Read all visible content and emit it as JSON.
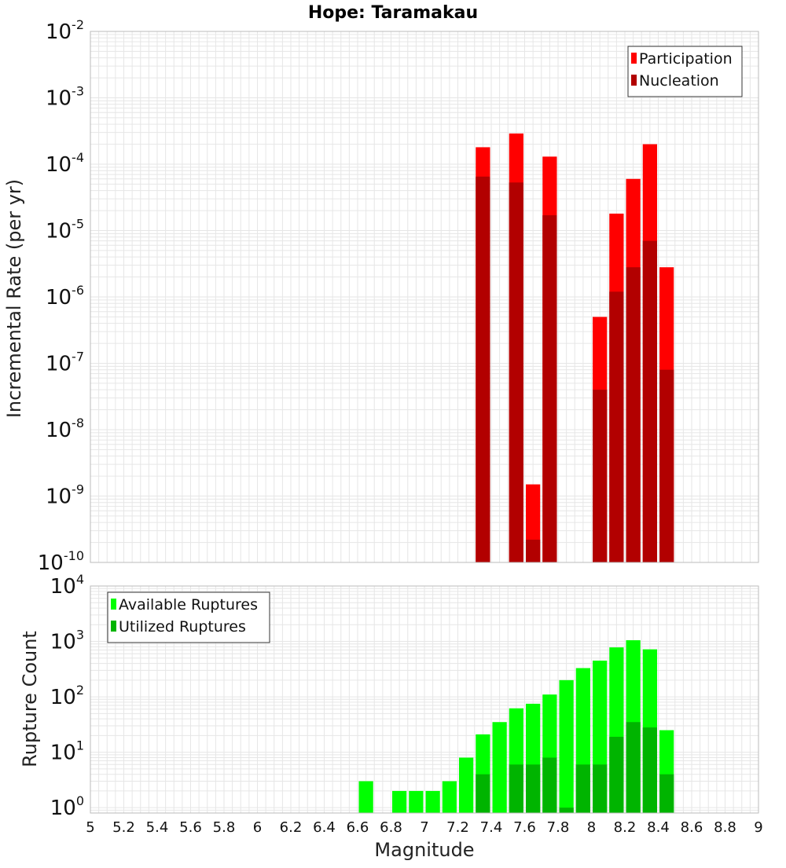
{
  "colors": {
    "participation": "#ff0000",
    "nucleation": "#b20000",
    "available": "#00ff00",
    "utilized": "#00b400",
    "grid": "#e6e6e6",
    "frame": "#bbbbbb"
  },
  "chart_data": [
    {
      "type": "bar",
      "title": "Hope: Taramakau",
      "ylabel": "Incremental Rate (per yr)",
      "xlabel": "",
      "yscale": "log",
      "ylim": [
        1e-10,
        0.01
      ],
      "xlim": [
        5,
        9
      ],
      "y_ticks": [
        {
          "base": "10",
          "exp": "-10",
          "value": 1e-10
        },
        {
          "base": "10",
          "exp": "-9",
          "value": 1e-09
        },
        {
          "base": "10",
          "exp": "-8",
          "value": 1e-08
        },
        {
          "base": "10",
          "exp": "-7",
          "value": 1e-07
        },
        {
          "base": "10",
          "exp": "-6",
          "value": 1e-06
        },
        {
          "base": "10",
          "exp": "-5",
          "value": 1e-05
        },
        {
          "base": "10",
          "exp": "-4",
          "value": 0.0001
        },
        {
          "base": "10",
          "exp": "-3",
          "value": 0.001
        },
        {
          "base": "10",
          "exp": "-2",
          "value": 0.01
        }
      ],
      "legend": {
        "position": "top-right",
        "entries": [
          "Participation",
          "Nucleation"
        ]
      },
      "series": [
        {
          "name": "Participation",
          "x": [
            7.35,
            7.55,
            7.65,
            7.75,
            8.05,
            8.15,
            8.25,
            8.35,
            8.45
          ],
          "values": [
            0.00018,
            0.00029,
            1.5e-09,
            0.00013,
            5e-07,
            1.8e-05,
            6e-05,
            0.0002,
            2.8e-06
          ]
        },
        {
          "name": "Nucleation",
          "x": [
            7.35,
            7.55,
            7.65,
            7.75,
            8.05,
            8.15,
            8.25,
            8.35,
            8.45
          ],
          "values": [
            6.5e-05,
            5.3e-05,
            2.2e-10,
            1.7e-05,
            4e-08,
            1.2e-06,
            2.8e-06,
            7e-06,
            8e-08
          ]
        }
      ]
    },
    {
      "type": "bar",
      "title": "",
      "ylabel": "Rupture Count",
      "xlabel": "Magnitude",
      "yscale": "log",
      "ylim": [
        0.8,
        10000
      ],
      "xlim": [
        5,
        9
      ],
      "y_ticks": [
        {
          "base": "10",
          "exp": "0",
          "value": 1
        },
        {
          "base": "10",
          "exp": "1",
          "value": 10
        },
        {
          "base": "10",
          "exp": "2",
          "value": 100
        },
        {
          "base": "10",
          "exp": "3",
          "value": 1000
        },
        {
          "base": "10",
          "exp": "4",
          "value": 10000
        }
      ],
      "x_tick_labels": [
        "5",
        "5.2",
        "5.4",
        "5.6",
        "5.8",
        "6",
        "6.2",
        "6.4",
        "6.6",
        "6.8",
        "7",
        "7.2",
        "7.4",
        "7.6",
        "7.8",
        "8",
        "8.2",
        "8.4",
        "8.6",
        "8.8",
        "9"
      ],
      "legend": {
        "position": "top-left",
        "entries": [
          "Available Ruptures",
          "Utilized Ruptures"
        ]
      },
      "series": [
        {
          "name": "Available Ruptures",
          "x": [
            6.65,
            6.85,
            6.95,
            7.05,
            7.15,
            7.25,
            7.35,
            7.45,
            7.55,
            7.65,
            7.75,
            7.85,
            7.95,
            8.05,
            8.15,
            8.25,
            8.35,
            8.45
          ],
          "values": [
            3,
            2,
            2,
            2,
            3,
            8,
            21,
            35,
            62,
            75,
            110,
            200,
            330,
            450,
            780,
            1050,
            720,
            25
          ]
        },
        {
          "name": "Utilized Ruptures",
          "x": [
            7.35,
            7.55,
            7.65,
            7.75,
            7.85,
            7.95,
            8.05,
            8.15,
            8.25,
            8.35,
            8.45
          ],
          "values": [
            4,
            6,
            6,
            8,
            1,
            6,
            6,
            19,
            35,
            28,
            4
          ]
        }
      ]
    }
  ]
}
